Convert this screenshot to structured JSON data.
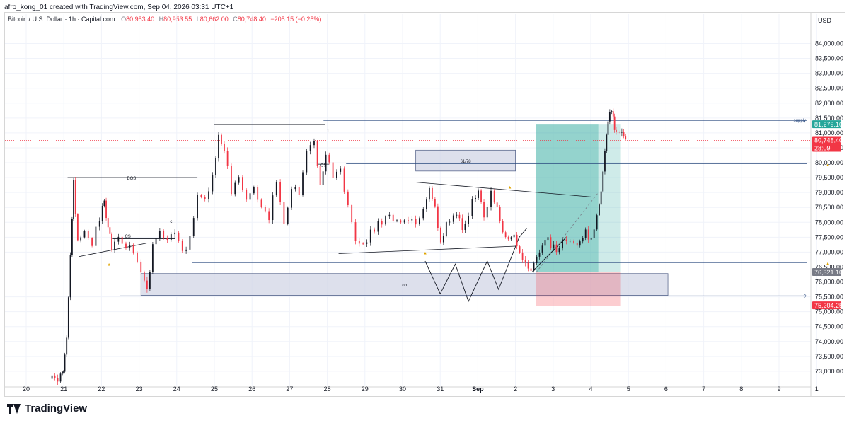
{
  "caption": "afro_kong_01 created with TradingView.com, Sep 04, 2026 03:31 UTC+1",
  "legend": {
    "symbol": "Bitcoin / U.S. Dollar · 1h · Capital.com",
    "open_label": "O",
    "open": "80,953.40",
    "high_label": "H",
    "high": "80,953.55",
    "low_label": "L",
    "low": "80,662.00",
    "close_label": "C",
    "close": "80,748.40",
    "change": "−205.15 (−0.25%)"
  },
  "currency": "USD",
  "brand": "TradingView",
  "colors": {
    "up": "#131722",
    "down": "#f23645",
    "grid": "#f0f3fa",
    "hline": "#2a4a7f",
    "zone": "#d1d6e6",
    "profit": "#26a69a",
    "loss": "#f23645"
  },
  "chart_data": {
    "type": "candlestick",
    "timeframe": "1h",
    "ylim": [
      72500,
      84700
    ],
    "y_ticks": [
      73000,
      73500,
      74000,
      74500,
      75000,
      75500,
      76000,
      76500,
      77000,
      77500,
      78000,
      78500,
      79000,
      79500,
      80000,
      80500,
      81000,
      81500,
      82000,
      82500,
      83000,
      83500,
      84000
    ],
    "y_tick_labels": [
      "73,000.00",
      "73,500.00",
      "74,000.00",
      "74,500.00",
      "75,000.00",
      "75,500.00",
      "76,000.00",
      "76,500.00",
      "77,000.00",
      "77,500.00",
      "78,000.00",
      "78,500.00",
      "79,000.00",
      "79,500.00",
      "80,000.00",
      "80,500.00",
      "81,000.00",
      "81,500.00",
      "82,000.00",
      "82,500.00",
      "83,000.00",
      "83,500.00",
      "84,000.00"
    ],
    "x_ticks": [
      {
        "label": "20",
        "d": 20
      },
      {
        "label": "21",
        "d": 21
      },
      {
        "label": "22",
        "d": 22
      },
      {
        "label": "23",
        "d": 23
      },
      {
        "label": "24",
        "d": 24
      },
      {
        "label": "25",
        "d": 25
      },
      {
        "label": "26",
        "d": 26
      },
      {
        "label": "27",
        "d": 27
      },
      {
        "label": "28",
        "d": 28
      },
      {
        "label": "29",
        "d": 29
      },
      {
        "label": "30",
        "d": 30
      },
      {
        "label": "31",
        "d": 31
      },
      {
        "label": "Sep",
        "d": 32,
        "bold": true
      },
      {
        "label": "2",
        "d": 33
      },
      {
        "label": "3",
        "d": 34
      },
      {
        "label": "4",
        "d": 35
      },
      {
        "label": "5",
        "d": 36
      },
      {
        "label": "6",
        "d": 37
      },
      {
        "label": "7",
        "d": 38
      },
      {
        "label": "8",
        "d": 39
      },
      {
        "label": "9",
        "d": 40
      },
      {
        "label": "1",
        "d": 41
      }
    ],
    "price_path": [
      [
        20.65,
        72750
      ],
      [
        20.8,
        72700
      ],
      [
        20.95,
        72900
      ],
      [
        21.0,
        73000
      ],
      [
        21.1,
        74200
      ],
      [
        21.2,
        76800
      ],
      [
        21.28,
        79350
      ],
      [
        21.4,
        77400
      ],
      [
        21.6,
        77700
      ],
      [
        21.8,
        77200
      ],
      [
        22.0,
        78200
      ],
      [
        22.1,
        78700
      ],
      [
        22.2,
        77800
      ],
      [
        22.3,
        77100
      ],
      [
        22.5,
        77400
      ],
      [
        22.7,
        77200
      ],
      [
        22.9,
        77000
      ],
      [
        23.1,
        76400
      ],
      [
        23.25,
        75600
      ],
      [
        23.4,
        77200
      ],
      [
        23.6,
        77600
      ],
      [
        23.8,
        77300
      ],
      [
        24.0,
        77800
      ],
      [
        24.2,
        77000
      ],
      [
        24.4,
        77400
      ],
      [
        24.6,
        79000
      ],
      [
        24.8,
        78700
      ],
      [
        25.0,
        79700
      ],
      [
        25.15,
        80800
      ],
      [
        25.3,
        80500
      ],
      [
        25.5,
        79000
      ],
      [
        25.7,
        79500
      ],
      [
        25.9,
        78800
      ],
      [
        26.1,
        79200
      ],
      [
        26.3,
        78500
      ],
      [
        26.5,
        78200
      ],
      [
        26.7,
        79300
      ],
      [
        26.9,
        77800
      ],
      [
        27.1,
        79200
      ],
      [
        27.3,
        79000
      ],
      [
        27.5,
        80300
      ],
      [
        27.7,
        80600
      ],
      [
        27.85,
        79200
      ],
      [
        28.0,
        80400
      ],
      [
        28.2,
        79500
      ],
      [
        28.4,
        79700
      ],
      [
        28.6,
        78500
      ],
      [
        28.8,
        77500
      ],
      [
        29.0,
        77300
      ],
      [
        29.2,
        77600
      ],
      [
        29.4,
        77900
      ],
      [
        29.6,
        78200
      ],
      [
        29.8,
        78100
      ],
      [
        30.0,
        78000
      ],
      [
        30.2,
        78200
      ],
      [
        30.4,
        77800
      ],
      [
        30.6,
        78500
      ],
      [
        30.75,
        79200
      ],
      [
        30.9,
        78500
      ],
      [
        31.05,
        77300
      ],
      [
        31.2,
        78000
      ],
      [
        31.4,
        78300
      ],
      [
        31.55,
        78000
      ],
      [
        31.7,
        77800
      ],
      [
        31.9,
        78900
      ],
      [
        32.05,
        79000
      ],
      [
        32.2,
        78300
      ],
      [
        32.4,
        78900
      ],
      [
        32.55,
        78500
      ],
      [
        32.7,
        77700
      ],
      [
        32.85,
        77400
      ],
      [
        33.0,
        77600
      ],
      [
        33.15,
        77000
      ],
      [
        33.3,
        76800
      ],
      [
        33.45,
        76300
      ],
      [
        33.6,
        76900
      ],
      [
        33.75,
        77300
      ],
      [
        33.9,
        77400
      ],
      [
        34.05,
        77100
      ],
      [
        34.2,
        77200
      ],
      [
        34.4,
        77500
      ],
      [
        34.6,
        77300
      ],
      [
        34.75,
        77400
      ],
      [
        34.9,
        77700
      ],
      [
        35.05,
        77400
      ],
      [
        35.2,
        78200
      ],
      [
        35.3,
        79000
      ],
      [
        35.4,
        80500
      ],
      [
        35.48,
        81400
      ],
      [
        35.58,
        81700
      ],
      [
        35.65,
        81200
      ],
      [
        35.75,
        81100
      ],
      [
        35.85,
        80900
      ],
      [
        35.95,
        80748
      ]
    ],
    "levels": [
      {
        "name": "supply",
        "price": 81420,
        "label": "supply"
      },
      {
        "name": "level-80000",
        "price": 79970
      },
      {
        "name": "level-76650",
        "price": 76650
      },
      {
        "name": "zero-level",
        "price": 75530,
        "label": "0"
      }
    ],
    "zones": [
      {
        "name": "ob-zone",
        "label": "ob",
        "d1": 23.05,
        "d2": 37.05,
        "p1": 75550,
        "p2": 76280
      },
      {
        "name": "fib-zone",
        "label": "61/78",
        "d1": 30.35,
        "d2": 33.0,
        "p1": 79720,
        "p2": 80420
      }
    ],
    "annotations": [
      {
        "name": "bos-label",
        "text": "BOS",
        "d": 22.8,
        "p": 79500
      },
      {
        "name": "cs-label-1",
        "text": "CS",
        "d": 22.7,
        "p": 77550
      },
      {
        "name": "cs-label-2",
        "text": "CS",
        "d": 27.9,
        "p": 79940
      },
      {
        "name": "c-label",
        "text": "c",
        "d": 23.85,
        "p": 78050
      },
      {
        "name": "one-label",
        "text": "1",
        "d": 28.02,
        "p": 81100
      }
    ],
    "position": {
      "entry": 76321.1,
      "target": 81279.1,
      "stop": 75204.25,
      "d1": 33.55,
      "d2": 35.2
    },
    "price_labels": [
      {
        "name": "target-price-label",
        "text": "81,279.10",
        "price": 81279.1,
        "color": "#26a69a"
      },
      {
        "name": "current-price-label",
        "text": "80,748.40",
        "price": 80748.4,
        "color": "#f23645",
        "sub": "28:09"
      },
      {
        "name": "entry-price-label",
        "text": "76,321.10",
        "price": 76321.1,
        "color": "#787b86"
      },
      {
        "name": "stop-price-label",
        "text": "75,204.25",
        "price": 75204.25,
        "color": "#f23645"
      }
    ]
  }
}
